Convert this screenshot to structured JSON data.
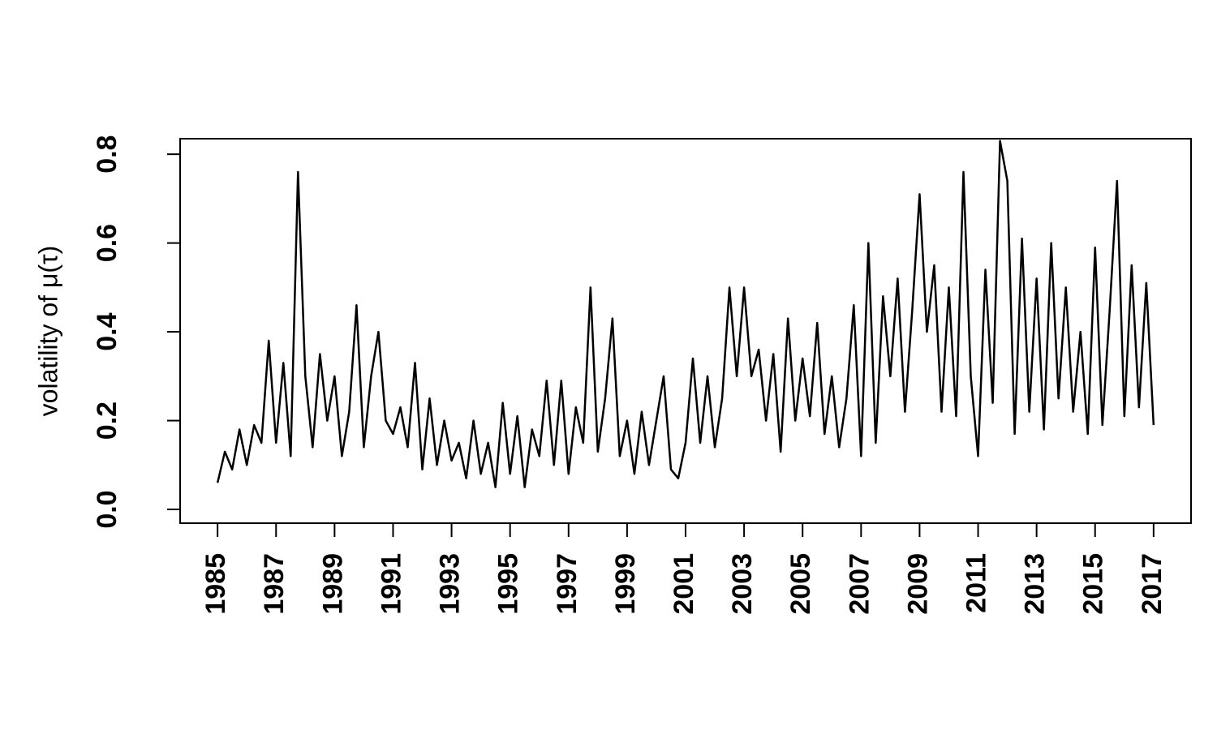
{
  "chart_data": {
    "type": "line",
    "ylabel": "volatility of  μ(τ)",
    "x": [
      1985,
      1985.25,
      1985.5,
      1985.75,
      1986,
      1986.25,
      1986.5,
      1986.75,
      1987,
      1987.25,
      1987.5,
      1987.75,
      1988,
      1988.25,
      1988.5,
      1988.75,
      1989,
      1989.25,
      1989.5,
      1989.75,
      1990,
      1990.25,
      1990.5,
      1990.75,
      1991,
      1991.25,
      1991.5,
      1991.75,
      1992,
      1992.25,
      1992.5,
      1992.75,
      1993,
      1993.25,
      1993.5,
      1993.75,
      1994,
      1994.25,
      1994.5,
      1994.75,
      1995,
      1995.25,
      1995.5,
      1995.75,
      1996,
      1996.25,
      1996.5,
      1996.75,
      1997,
      1997.25,
      1997.5,
      1997.75,
      1998,
      1998.25,
      1998.5,
      1998.75,
      1999,
      1999.25,
      1999.5,
      1999.75,
      2000,
      2000.25,
      2000.5,
      2000.75,
      2001,
      2001.25,
      2001.5,
      2001.75,
      2002,
      2002.25,
      2002.5,
      2002.75,
      2003,
      2003.25,
      2003.5,
      2003.75,
      2004,
      2004.25,
      2004.5,
      2004.75,
      2005,
      2005.25,
      2005.5,
      2005.75,
      2006,
      2006.25,
      2006.5,
      2006.75,
      2007,
      2007.25,
      2007.5,
      2007.75,
      2008,
      2008.25,
      2008.5,
      2008.75,
      2009,
      2009.25,
      2009.5,
      2009.75,
      2010,
      2010.25,
      2010.5,
      2010.75,
      2011,
      2011.25,
      2011.5,
      2011.75,
      2012,
      2012.25,
      2012.5,
      2012.75,
      2013,
      2013.25,
      2013.5,
      2013.75,
      2014,
      2014.25,
      2014.5,
      2014.75,
      2015,
      2015.25,
      2015.5,
      2015.75,
      2016,
      2016.25,
      2016.5,
      2016.75,
      2017
    ],
    "series": [
      {
        "color": "#000000",
        "values": [
          0.06,
          0.13,
          0.09,
          0.18,
          0.1,
          0.19,
          0.15,
          0.38,
          0.15,
          0.33,
          0.12,
          0.76,
          0.3,
          0.14,
          0.35,
          0.2,
          0.3,
          0.12,
          0.22,
          0.46,
          0.14,
          0.3,
          0.4,
          0.2,
          0.17,
          0.23,
          0.14,
          0.33,
          0.09,
          0.25,
          0.1,
          0.2,
          0.11,
          0.15,
          0.07,
          0.2,
          0.08,
          0.15,
          0.05,
          0.24,
          0.08,
          0.21,
          0.05,
          0.18,
          0.12,
          0.29,
          0.1,
          0.29,
          0.08,
          0.23,
          0.15,
          0.5,
          0.13,
          0.25,
          0.43,
          0.12,
          0.2,
          0.08,
          0.22,
          0.1,
          0.2,
          0.3,
          0.09,
          0.07,
          0.15,
          0.34,
          0.15,
          0.3,
          0.14,
          0.25,
          0.5,
          0.3,
          0.5,
          0.3,
          0.36,
          0.2,
          0.35,
          0.13,
          0.43,
          0.2,
          0.34,
          0.21,
          0.42,
          0.17,
          0.3,
          0.14,
          0.25,
          0.46,
          0.12,
          0.6,
          0.15,
          0.48,
          0.3,
          0.52,
          0.22,
          0.45,
          0.71,
          0.4,
          0.55,
          0.22,
          0.5,
          0.21,
          0.76,
          0.3,
          0.12,
          0.54,
          0.24,
          0.83,
          0.74,
          0.17,
          0.61,
          0.22,
          0.52,
          0.18,
          0.6,
          0.25,
          0.5,
          0.22,
          0.4,
          0.17,
          0.59,
          0.19,
          0.45,
          0.74,
          0.21,
          0.55,
          0.23,
          0.51,
          0.19
        ]
      }
    ],
    "xlim": [
      1983.72,
      2018.28
    ],
    "xticks": [
      1985,
      1987,
      1989,
      1991,
      1993,
      1995,
      1997,
      1999,
      2001,
      2003,
      2005,
      2007,
      2009,
      2011,
      2013,
      2015,
      2017
    ],
    "ylim": [
      -0.031,
      0.835
    ],
    "yticks": [
      {
        "value": 0,
        "label": "0.0"
      },
      0.2,
      0.4,
      0.6,
      0.8
    ]
  }
}
